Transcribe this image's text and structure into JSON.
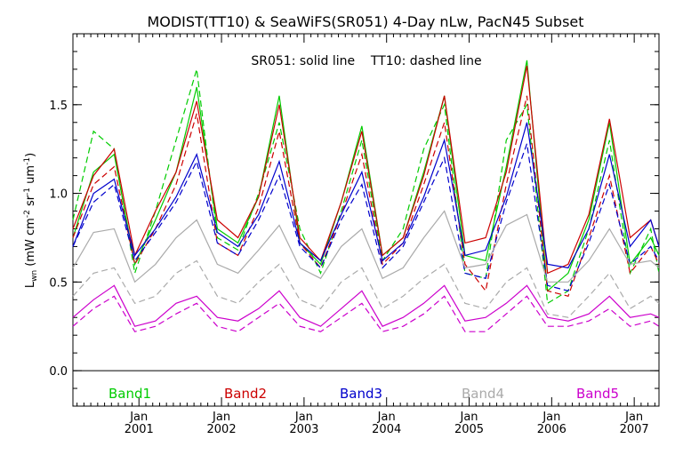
{
  "chart_data": {
    "type": "line",
    "title": "MODIST(TT10) & SeaWiFS(SR051) 4-Day nLw, PacN45 Subset",
    "annotation": "SR051: solid line    TT10: dashed line",
    "ylabel": "L_wn (mW cm^-2 sr^-1 um^-1)",
    "ylim": [
      -0.2,
      1.9
    ],
    "yticks": [
      "0.0",
      "0.5",
      "1.0",
      "1.5"
    ],
    "xlim": [
      2000.2,
      2007.3
    ],
    "xticks": [
      {
        "month": "Jan",
        "year": "2001",
        "x": 2001.0
      },
      {
        "month": "Jan",
        "year": "2002",
        "x": 2002.0
      },
      {
        "month": "Jan",
        "year": "2003",
        "x": 2003.0
      },
      {
        "month": "Jan",
        "year": "2004",
        "x": 2004.0
      },
      {
        "month": "Jan",
        "year": "2005",
        "x": 2005.0
      },
      {
        "month": "Jan",
        "year": "2006",
        "x": 2006.0
      },
      {
        "month": "Jan",
        "year": "2007",
        "x": 2007.0
      }
    ],
    "reference_line": 0.0,
    "line_styles": {
      "SR051": "solid",
      "TT10": "dashed"
    },
    "x": [
      2000.2,
      2000.45,
      2000.7,
      2000.95,
      2001.2,
      2001.45,
      2001.7,
      2001.95,
      2002.2,
      2002.45,
      2002.7,
      2002.95,
      2003.2,
      2003.45,
      2003.7,
      2003.95,
      2004.2,
      2004.45,
      2004.7,
      2004.95,
      2005.2,
      2005.45,
      2005.7,
      2005.95,
      2006.2,
      2006.45,
      2006.7,
      2006.95,
      2007.2,
      2007.3
    ],
    "series": [
      {
        "name": "Band1",
        "color": "#00cc00",
        "source": "SR051",
        "values": [
          0.75,
          1.12,
          1.22,
          0.6,
          0.85,
          1.12,
          1.6,
          0.8,
          0.72,
          0.98,
          1.55,
          0.72,
          0.6,
          0.95,
          1.38,
          0.65,
          0.75,
          1.12,
          1.55,
          0.65,
          0.62,
          1.15,
          1.75,
          0.45,
          0.55,
          0.85,
          1.4,
          0.6,
          0.75,
          0.65
        ]
      },
      {
        "name": "Band1",
        "color": "#00cc00",
        "source": "TT10",
        "values": [
          0.85,
          1.35,
          1.25,
          0.55,
          0.9,
          1.3,
          1.7,
          0.75,
          0.68,
          1.0,
          1.4,
          0.8,
          0.55,
          0.9,
          1.3,
          0.62,
          0.8,
          1.25,
          1.5,
          0.55,
          0.52,
          1.3,
          1.5,
          0.38,
          0.45,
          0.8,
          1.3,
          0.55,
          0.8,
          0.55
        ]
      },
      {
        "name": "Band2",
        "color": "#cc0000",
        "source": "SR051",
        "values": [
          0.8,
          1.1,
          1.25,
          0.65,
          0.9,
          1.12,
          1.52,
          0.85,
          0.75,
          0.98,
          1.5,
          0.75,
          0.62,
          0.95,
          1.35,
          0.65,
          0.75,
          1.1,
          1.55,
          0.72,
          0.75,
          1.12,
          1.72,
          0.55,
          0.6,
          0.88,
          1.42,
          0.75,
          0.85,
          0.7
        ]
      },
      {
        "name": "Band2",
        "color": "#cc0000",
        "source": "TT10",
        "values": [
          0.75,
          1.05,
          1.15,
          0.6,
          0.8,
          1.05,
          1.45,
          0.72,
          0.65,
          0.92,
          1.35,
          0.72,
          0.58,
          0.88,
          1.22,
          0.6,
          0.72,
          1.05,
          1.4,
          0.6,
          0.45,
          1.05,
          1.55,
          0.45,
          0.42,
          0.75,
          1.1,
          0.55,
          0.7,
          0.6
        ]
      },
      {
        "name": "Band3",
        "color": "#0000cc",
        "source": "SR051",
        "values": [
          0.7,
          1.0,
          1.08,
          0.65,
          0.8,
          0.98,
          1.22,
          0.78,
          0.7,
          0.88,
          1.18,
          0.72,
          0.62,
          0.88,
          1.12,
          0.62,
          0.72,
          0.98,
          1.3,
          0.65,
          0.68,
          0.98,
          1.4,
          0.6,
          0.58,
          0.8,
          1.22,
          0.7,
          0.85,
          0.7
        ]
      },
      {
        "name": "Band3",
        "color": "#0000cc",
        "source": "TT10",
        "values": [
          0.7,
          0.95,
          1.05,
          0.62,
          0.78,
          0.95,
          1.18,
          0.72,
          0.65,
          0.85,
          1.1,
          0.7,
          0.58,
          0.85,
          1.05,
          0.58,
          0.7,
          0.95,
          1.2,
          0.55,
          0.52,
          0.95,
          1.28,
          0.48,
          0.45,
          0.72,
          1.05,
          0.6,
          0.7,
          0.62
        ]
      },
      {
        "name": "Band4",
        "color": "#aaaaaa",
        "source": "SR051",
        "values": [
          0.58,
          0.78,
          0.8,
          0.5,
          0.6,
          0.75,
          0.85,
          0.6,
          0.55,
          0.68,
          0.82,
          0.58,
          0.52,
          0.7,
          0.8,
          0.52,
          0.58,
          0.75,
          0.9,
          0.58,
          0.6,
          0.82,
          0.88,
          0.5,
          0.5,
          0.62,
          0.8,
          0.6,
          0.62,
          0.58
        ]
      },
      {
        "name": "Band4",
        "color": "#aaaaaa",
        "source": "TT10",
        "values": [
          0.42,
          0.55,
          0.58,
          0.38,
          0.42,
          0.55,
          0.62,
          0.42,
          0.38,
          0.5,
          0.6,
          0.4,
          0.35,
          0.5,
          0.58,
          0.35,
          0.42,
          0.52,
          0.6,
          0.38,
          0.35,
          0.5,
          0.58,
          0.32,
          0.3,
          0.42,
          0.55,
          0.35,
          0.42,
          0.38
        ]
      },
      {
        "name": "Band5",
        "color": "#cc00cc",
        "source": "SR051",
        "values": [
          0.3,
          0.4,
          0.48,
          0.25,
          0.28,
          0.38,
          0.42,
          0.3,
          0.28,
          0.35,
          0.45,
          0.3,
          0.25,
          0.35,
          0.45,
          0.25,
          0.3,
          0.38,
          0.48,
          0.28,
          0.3,
          0.38,
          0.48,
          0.3,
          0.28,
          0.32,
          0.42,
          0.3,
          0.32,
          0.3
        ]
      },
      {
        "name": "Band5",
        "color": "#cc00cc",
        "source": "TT10",
        "values": [
          0.25,
          0.35,
          0.42,
          0.22,
          0.25,
          0.32,
          0.38,
          0.25,
          0.22,
          0.3,
          0.38,
          0.25,
          0.22,
          0.3,
          0.38,
          0.22,
          0.25,
          0.32,
          0.42,
          0.22,
          0.22,
          0.32,
          0.42,
          0.25,
          0.25,
          0.28,
          0.35,
          0.25,
          0.28,
          0.25
        ]
      }
    ],
    "legend": [
      {
        "label": "Band1",
        "color": "#00cc00"
      },
      {
        "label": "Band2",
        "color": "#cc0000"
      },
      {
        "label": "Band3",
        "color": "#0000cc"
      },
      {
        "label": "Band4",
        "color": "#aaaaaa"
      },
      {
        "label": "Band5",
        "color": "#cc00cc"
      }
    ]
  }
}
